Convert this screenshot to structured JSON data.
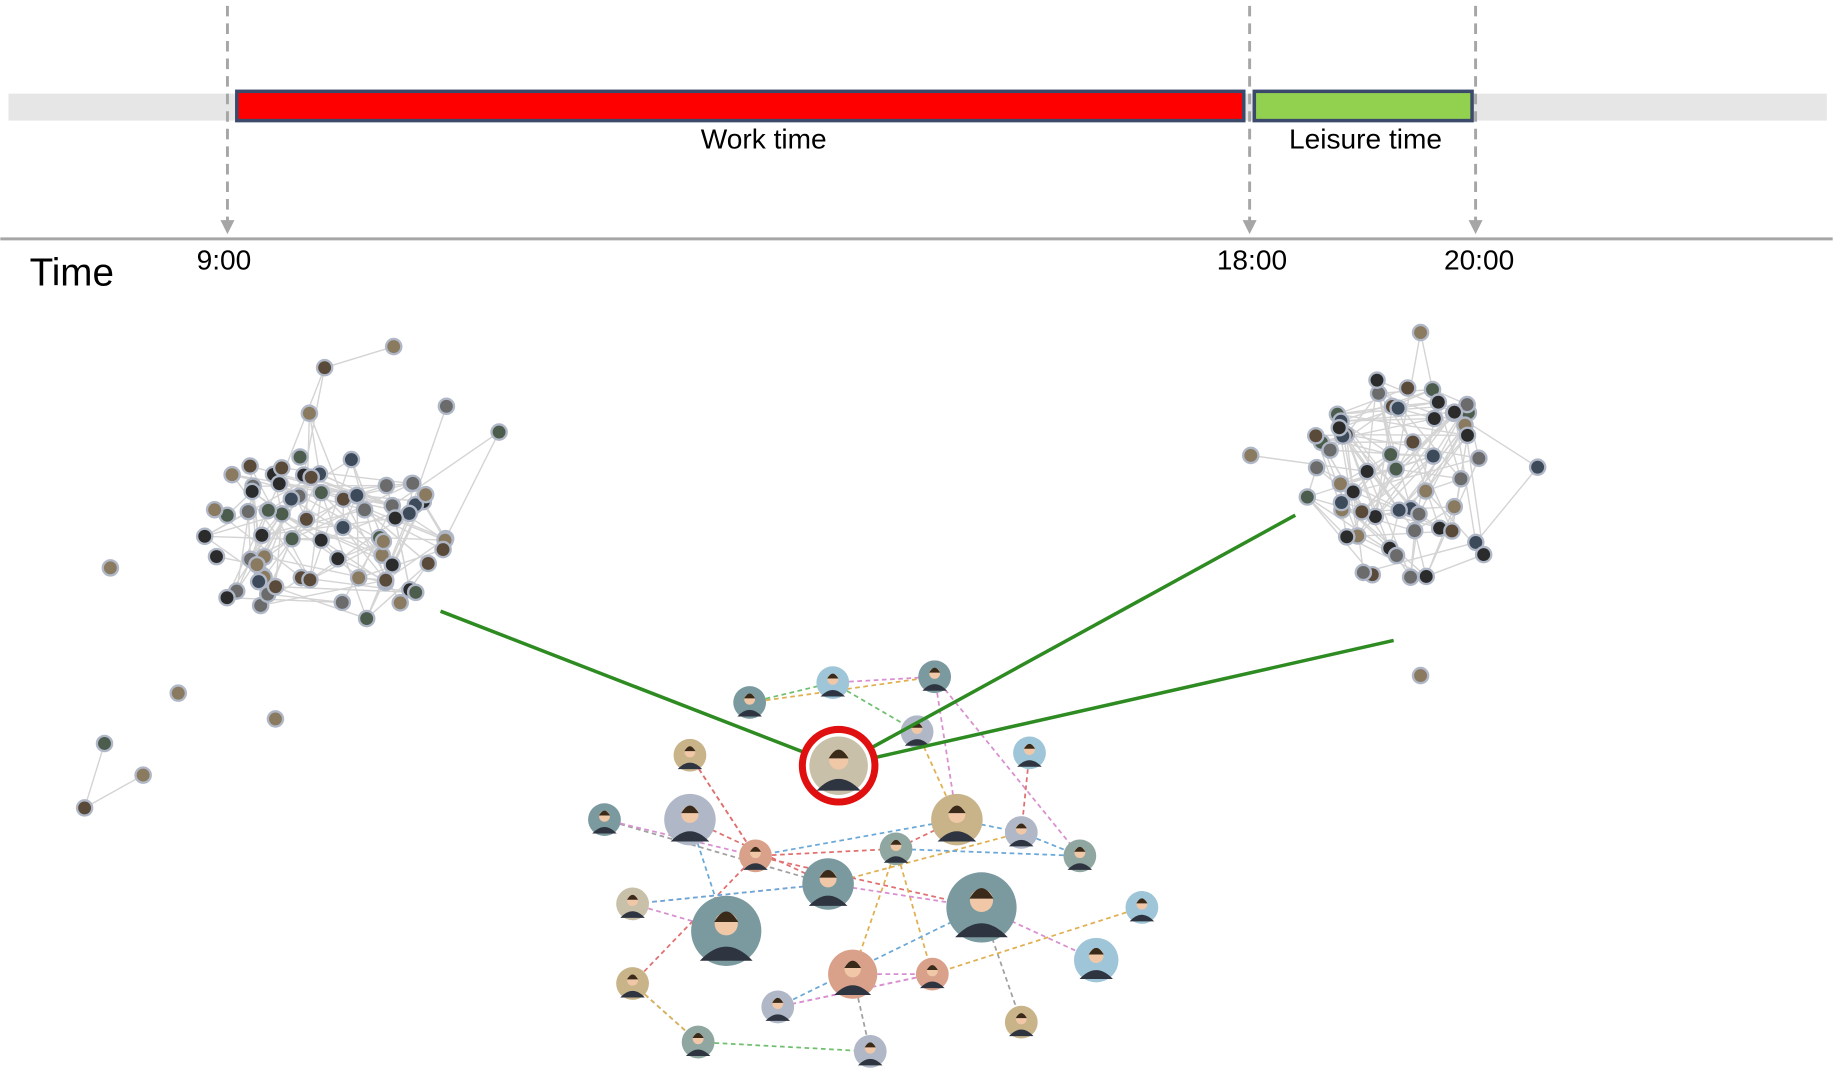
{
  "timeline": {
    "axis_label": "Time",
    "ticks": [
      "9:00",
      "18:00",
      "20:00"
    ],
    "segments": [
      {
        "label": "Work time",
        "color": "#ff0000"
      },
      {
        "label": "Leisure time",
        "color": "#92d050"
      }
    ]
  }
}
